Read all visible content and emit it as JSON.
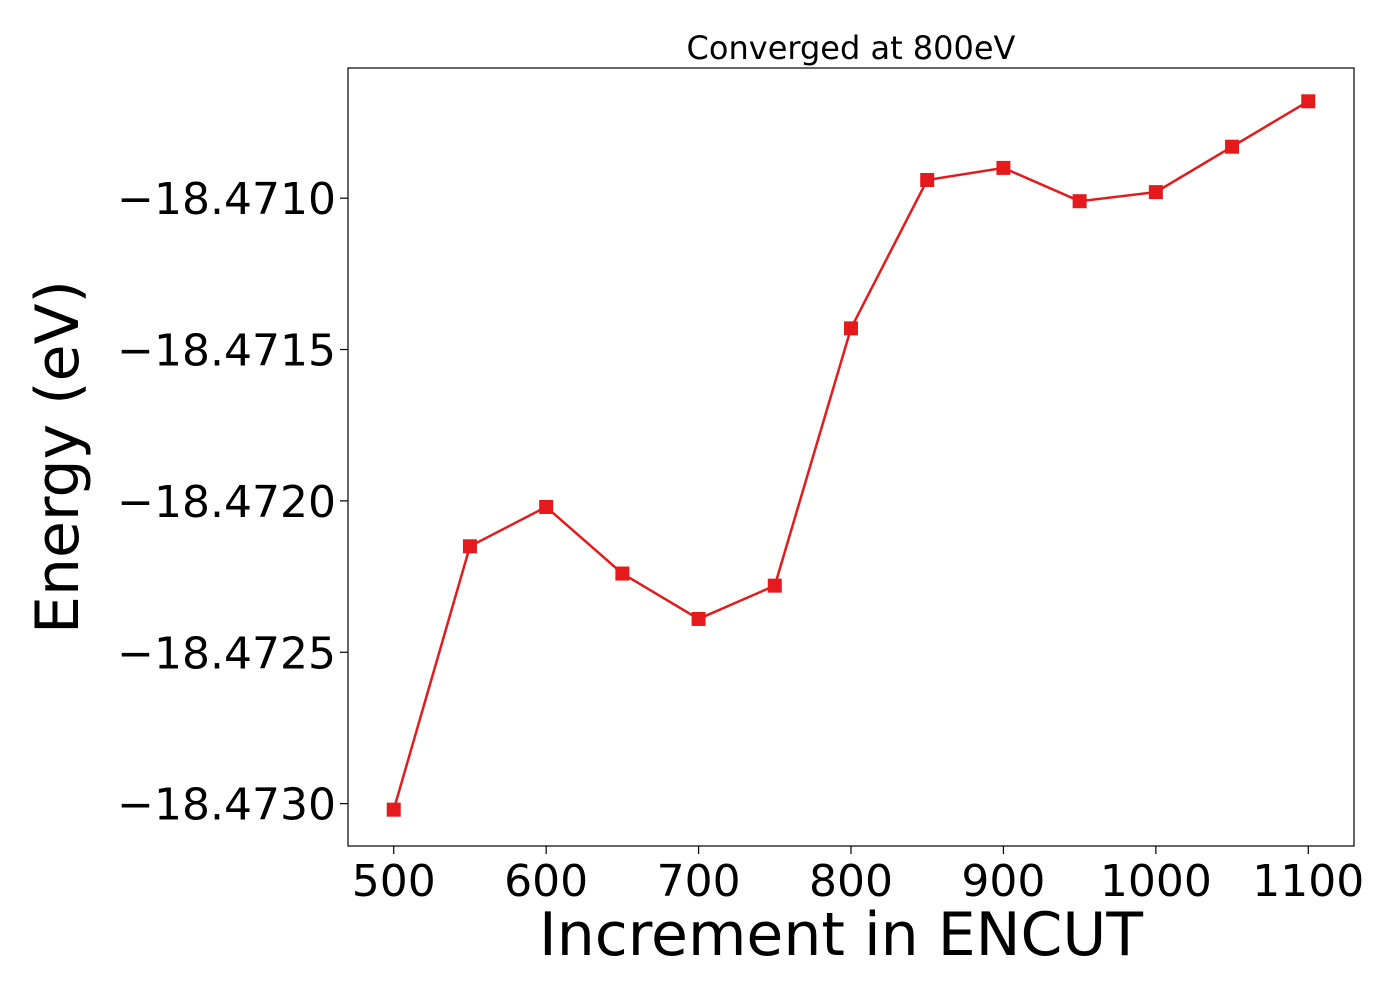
{
  "chart_data": {
    "type": "line",
    "title": "Converged at 800eV",
    "xlabel": "Increment in ENCUT",
    "ylabel": "Energy (eV)",
    "x": [
      500,
      550,
      600,
      650,
      700,
      750,
      800,
      850,
      900,
      950,
      1000,
      1050,
      1100
    ],
    "series": [
      {
        "values": [
          -18.47302,
          -18.47215,
          -18.47202,
          -18.47224,
          -18.47239,
          -18.47228,
          -18.47143,
          -18.47094,
          -18.4709,
          -18.47101,
          -18.47098,
          -18.47083,
          -18.47068
        ],
        "color": "#e41a1c",
        "marker": "square"
      }
    ],
    "xlim": [
      470,
      1130
    ],
    "ylim": [
      -18.47314,
      -18.47057
    ],
    "xticks": [
      500,
      600,
      700,
      800,
      900,
      1000,
      1100
    ],
    "xtick_labels": [
      "500",
      "600",
      "700",
      "800",
      "900",
      "1000",
      "1100"
    ],
    "yticks": [
      -18.473,
      -18.4725,
      -18.472,
      -18.4715,
      -18.471
    ],
    "ytick_labels": [
      "−18.4730",
      "−18.4725",
      "−18.4720",
      "−18.4715",
      "−18.4710"
    ],
    "grid": false,
    "legend": "none"
  }
}
